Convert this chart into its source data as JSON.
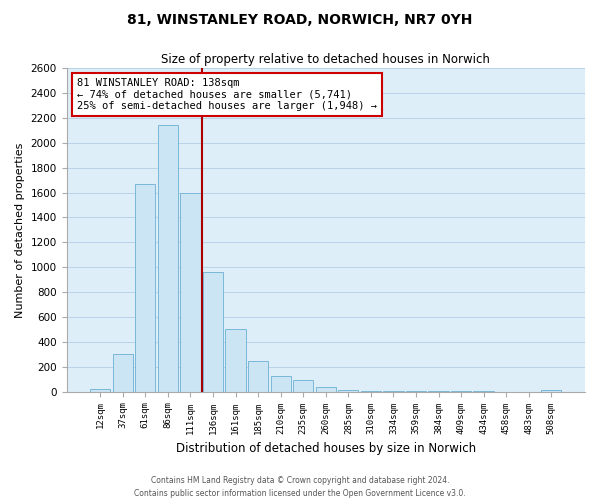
{
  "title": "81, WINSTANLEY ROAD, NORWICH, NR7 0YH",
  "subtitle": "Size of property relative to detached houses in Norwich",
  "xlabel": "Distribution of detached houses by size in Norwich",
  "ylabel": "Number of detached properties",
  "bar_labels": [
    "12sqm",
    "37sqm",
    "61sqm",
    "86sqm",
    "111sqm",
    "136sqm",
    "161sqm",
    "185sqm",
    "210sqm",
    "235sqm",
    "260sqm",
    "285sqm",
    "310sqm",
    "334sqm",
    "359sqm",
    "384sqm",
    "409sqm",
    "434sqm",
    "458sqm",
    "483sqm",
    "508sqm"
  ],
  "bar_values": [
    20,
    300,
    1670,
    2140,
    1600,
    960,
    505,
    250,
    125,
    95,
    40,
    12,
    8,
    5,
    4,
    3,
    2,
    2,
    1,
    1,
    10
  ],
  "bar_color": "#cce5f5",
  "bar_edge_color": "#7ab8d9",
  "background_color": "#ffffff",
  "axes_bg_color": "#deeef8",
  "grid_color": "#b8d4e8",
  "vline_color": "#aa0000",
  "vline_x_index": 5,
  "annotation_line1": "81 WINSTANLEY ROAD: 138sqm",
  "annotation_line2": "← 74% of detached houses are smaller (5,741)",
  "annotation_line3": "25% of semi-detached houses are larger (1,948) →",
  "annotation_box_color": "#ffffff",
  "annotation_box_edge": "#cc0000",
  "ylim": [
    0,
    2600
  ],
  "yticks": [
    0,
    200,
    400,
    600,
    800,
    1000,
    1200,
    1400,
    1600,
    1800,
    2000,
    2200,
    2400,
    2600
  ],
  "footer_line1": "Contains HM Land Registry data © Crown copyright and database right 2024.",
  "footer_line2": "Contains public sector information licensed under the Open Government Licence v3.0."
}
